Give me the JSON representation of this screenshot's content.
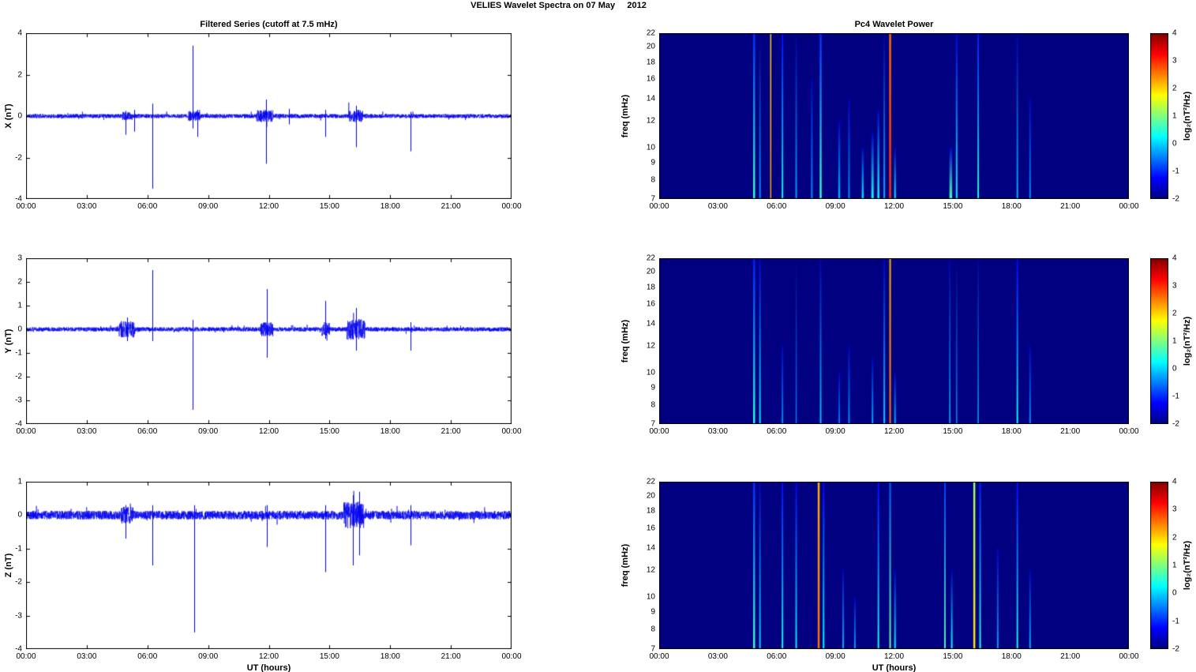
{
  "figure_title": "VELIES Wavelet Spectra on 07 May     2012",
  "colors": {
    "line": "#0000ee",
    "axis": "#000000",
    "spectro_background": "#00007f"
  },
  "time_axis": {
    "label": "UT (hours)",
    "hours": [
      0,
      3,
      6,
      9,
      12,
      15,
      18,
      21,
      24
    ],
    "labels": [
      "00:00",
      "03:00",
      "06:00",
      "09:00",
      "12:00",
      "15:00",
      "18:00",
      "21:00",
      "00:00"
    ]
  },
  "chart_data": [
    {
      "type": "line",
      "title": "Filtered Series (cutoff at 7.5 mHz)",
      "ylabel": "X (nT)",
      "ylim": [
        -4,
        4
      ],
      "yticks": [
        -4,
        -2,
        0,
        2,
        4
      ],
      "xlim_hours": [
        0,
        24
      ],
      "noise": 0.1,
      "seed": 11,
      "bursts": [
        {
          "t": 5.0,
          "w": 0.5,
          "amp": 0.2
        },
        {
          "t": 8.3,
          "w": 0.6,
          "amp": 0.25
        },
        {
          "t": 11.8,
          "w": 0.8,
          "amp": 0.3
        },
        {
          "t": 16.3,
          "w": 0.7,
          "amp": 0.3
        }
      ],
      "spikes": [
        {
          "t": 4.9,
          "up": 0.25,
          "down": -0.9
        },
        {
          "t": 5.35,
          "up": 0.3,
          "down": -0.75
        },
        {
          "t": 6.25,
          "up": 0.6,
          "down": -3.5
        },
        {
          "t": 8.25,
          "up": 3.4,
          "down": -0.6
        },
        {
          "t": 8.45,
          "up": 0.3,
          "down": -1.0
        },
        {
          "t": 11.85,
          "up": 0.8,
          "down": -2.3
        },
        {
          "t": 13.0,
          "up": 0.35,
          "down": -0.4
        },
        {
          "t": 14.8,
          "up": 0.3,
          "down": -1.0
        },
        {
          "t": 16.3,
          "up": 0.5,
          "down": -1.5
        },
        {
          "t": 19.0,
          "up": 0.2,
          "down": -1.7
        }
      ]
    },
    {
      "type": "line",
      "ylabel": "Y (nT)",
      "ylim": [
        -4,
        3
      ],
      "yticks": [
        -4,
        -3,
        -2,
        -1,
        0,
        1,
        2,
        3
      ],
      "xlim_hours": [
        0,
        24
      ],
      "noise": 0.09,
      "seed": 22,
      "bursts": [
        {
          "t": 5.0,
          "w": 0.8,
          "amp": 0.35
        },
        {
          "t": 11.9,
          "w": 0.6,
          "amp": 0.3
        },
        {
          "t": 14.8,
          "w": 0.4,
          "amp": 0.3
        },
        {
          "t": 16.3,
          "w": 0.9,
          "amp": 0.45
        }
      ],
      "spikes": [
        {
          "t": 5.0,
          "up": 0.5,
          "down": -0.5
        },
        {
          "t": 6.25,
          "up": 2.5,
          "down": -0.5
        },
        {
          "t": 8.25,
          "up": 0.4,
          "down": -3.4
        },
        {
          "t": 11.9,
          "up": 1.7,
          "down": -1.2
        },
        {
          "t": 14.8,
          "up": 1.2,
          "down": -0.4
        },
        {
          "t": 16.3,
          "up": 0.9,
          "down": -0.9
        },
        {
          "t": 19.0,
          "up": 0.3,
          "down": -0.9
        }
      ]
    },
    {
      "type": "line",
      "ylabel": "Z (nT)",
      "xlabel": "UT (hours)",
      "ylim": [
        -4,
        1
      ],
      "yticks": [
        -4,
        -3,
        -2,
        -1,
        0,
        1
      ],
      "xlim_hours": [
        0,
        24
      ],
      "noise": 0.13,
      "seed": 33,
      "bursts": [
        {
          "t": 5.0,
          "w": 0.6,
          "amp": 0.25
        },
        {
          "t": 16.2,
          "w": 1.0,
          "amp": 0.4
        }
      ],
      "spikes": [
        {
          "t": 4.9,
          "up": 0.3,
          "down": -0.7
        },
        {
          "t": 6.25,
          "up": 0.3,
          "down": -1.5
        },
        {
          "t": 8.3,
          "up": 0.3,
          "down": -3.5
        },
        {
          "t": 11.9,
          "up": 0.3,
          "down": -0.95
        },
        {
          "t": 14.8,
          "up": 0.3,
          "down": -1.7
        },
        {
          "t": 16.15,
          "up": 0.6,
          "down": -1.5
        },
        {
          "t": 16.45,
          "up": 0.7,
          "down": -1.2
        },
        {
          "t": 19.0,
          "up": 0.3,
          "down": -0.9
        }
      ]
    },
    {
      "type": "heatmap",
      "title": "Pc4 Wavelet Power",
      "ylabel": "freq (mHz)",
      "ylim": [
        7,
        22
      ],
      "yscale": "log",
      "yticks": [
        7,
        8,
        9,
        10,
        12,
        14,
        16,
        18,
        20,
        22
      ],
      "xlim_hours": [
        0,
        24
      ],
      "background": -2,
      "colorbar": {
        "label": "log₂(nT²/Hz)",
        "lim": [
          -2,
          4
        ],
        "ticks": [
          -2,
          -1,
          0,
          1,
          2,
          3,
          4
        ]
      },
      "streaks": [
        {
          "t": 4.85,
          "v": 0.6,
          "w": 2.5
        },
        {
          "t": 5.15,
          "v": -0.4,
          "w": 2
        },
        {
          "t": 5.7,
          "v": 2.3,
          "vtop": 2.0,
          "w": 1.5
        },
        {
          "t": 6.3,
          "v": 0.4,
          "w": 2
        },
        {
          "t": 7.0,
          "v": -0.3,
          "w": 2
        },
        {
          "t": 7.8,
          "v": -0.4,
          "ftop": 16,
          "w": 2
        },
        {
          "t": 8.25,
          "v": 0.6,
          "w": 2.5
        },
        {
          "t": 9.2,
          "v": -0.2,
          "ftop": 12,
          "w": 2.5
        },
        {
          "t": 9.7,
          "v": -0.4,
          "ftop": 14,
          "w": 2
        },
        {
          "t": 10.4,
          "v": 0.1,
          "ftop": 10,
          "w": 2.5
        },
        {
          "t": 10.9,
          "v": 0.4,
          "ftop": 11,
          "w": 3
        },
        {
          "t": 11.2,
          "v": 0.3,
          "ftop": 13,
          "w": 2.5
        },
        {
          "t": 11.5,
          "v": -0.2,
          "w": 2
        },
        {
          "t": 11.8,
          "v": 3.0,
          "vtop": 2.6,
          "w": 2.5
        },
        {
          "t": 12.05,
          "v": 0.2,
          "ftop": 10,
          "w": 2
        },
        {
          "t": 14.9,
          "v": 0.7,
          "ftop": 10,
          "w": 3.5
        },
        {
          "t": 15.2,
          "v": 0.2,
          "w": 2
        },
        {
          "t": 16.3,
          "v": 0.5,
          "w": 2
        },
        {
          "t": 18.3,
          "v": -0.2,
          "w": 2
        },
        {
          "t": 18.95,
          "v": -0.4,
          "ftop": 14,
          "w": 2
        }
      ]
    },
    {
      "type": "heatmap",
      "ylabel": "freq (mHz)",
      "ylim": [
        7,
        22
      ],
      "yscale": "log",
      "yticks": [
        7,
        8,
        9,
        10,
        12,
        14,
        16,
        18,
        20,
        22
      ],
      "xlim_hours": [
        0,
        24
      ],
      "background": -2,
      "colorbar": {
        "label": "log₂(nT²/Hz)",
        "lim": [
          -2,
          4
        ],
        "ticks": [
          -2,
          -1,
          0,
          1,
          2,
          3,
          4
        ]
      },
      "streaks": [
        {
          "t": 4.85,
          "v": 0.5,
          "w": 2.5
        },
        {
          "t": 5.15,
          "v": 0.1,
          "w": 2
        },
        {
          "t": 6.3,
          "v": -0.4,
          "ftop": 12,
          "w": 2
        },
        {
          "t": 7.0,
          "v": -0.5,
          "w": 1.5
        },
        {
          "t": 8.25,
          "v": -0.1,
          "w": 2
        },
        {
          "t": 9.2,
          "v": -0.5,
          "ftop": 10,
          "w": 2
        },
        {
          "t": 9.7,
          "v": -0.4,
          "ftop": 12,
          "w": 2
        },
        {
          "t": 10.9,
          "v": -0.2,
          "ftop": 11,
          "w": 2
        },
        {
          "t": 11.5,
          "v": 0.0,
          "w": 2
        },
        {
          "t": 11.8,
          "v": 2.6,
          "vtop": 2.2,
          "w": 2
        },
        {
          "t": 12.05,
          "v": -0.2,
          "ftop": 10,
          "w": 2
        },
        {
          "t": 14.85,
          "v": -0.1,
          "w": 1.5
        },
        {
          "t": 15.2,
          "v": -0.4,
          "w": 1.5
        },
        {
          "t": 16.3,
          "v": -0.2,
          "w": 1.5
        },
        {
          "t": 18.3,
          "v": 0.3,
          "w": 2
        },
        {
          "t": 18.95,
          "v": -0.4,
          "ftop": 12,
          "w": 2
        }
      ]
    },
    {
      "type": "heatmap",
      "ylabel": "freq (mHz)",
      "xlabel": "UT (hours)",
      "ylim": [
        7,
        22
      ],
      "yscale": "log",
      "yticks": [
        7,
        8,
        9,
        10,
        12,
        14,
        16,
        18,
        20,
        22
      ],
      "xlim_hours": [
        0,
        24
      ],
      "background": -2,
      "colorbar": {
        "label": "log₂(nT²/Hz)",
        "lim": [
          -2,
          4
        ],
        "ticks": [
          -2,
          -1,
          0,
          1,
          2,
          3,
          4
        ]
      },
      "streaks": [
        {
          "t": 4.85,
          "v": 0.6,
          "w": 2.5
        },
        {
          "t": 5.15,
          "v": 0.0,
          "w": 2
        },
        {
          "t": 6.3,
          "v": 0.4,
          "w": 2
        },
        {
          "t": 7.0,
          "v": 0.2,
          "w": 2
        },
        {
          "t": 8.15,
          "v": 2.6,
          "vtop": 2.2,
          "w": 2.5
        },
        {
          "t": 8.4,
          "v": 0.3,
          "w": 2
        },
        {
          "t": 9.4,
          "v": -0.2,
          "ftop": 12,
          "w": 2
        },
        {
          "t": 10.0,
          "v": -0.3,
          "ftop": 10,
          "w": 2
        },
        {
          "t": 11.2,
          "v": 0.4,
          "w": 2
        },
        {
          "t": 11.8,
          "v": 0.9,
          "w": 2
        },
        {
          "t": 12.05,
          "v": 0.2,
          "ftop": 12,
          "w": 2
        },
        {
          "t": 14.6,
          "v": 0.7,
          "w": 2
        },
        {
          "t": 14.95,
          "v": 0.3,
          "ftop": 12,
          "w": 2
        },
        {
          "t": 16.1,
          "v": 1.9,
          "vtop": 1.2,
          "w": 2.5
        },
        {
          "t": 16.4,
          "v": 0.5,
          "w": 2
        },
        {
          "t": 17.3,
          "v": -0.3,
          "ftop": 14,
          "w": 2
        },
        {
          "t": 18.3,
          "v": 0.4,
          "w": 2
        },
        {
          "t": 18.95,
          "v": -0.2,
          "ftop": 12,
          "w": 2
        }
      ]
    }
  ]
}
